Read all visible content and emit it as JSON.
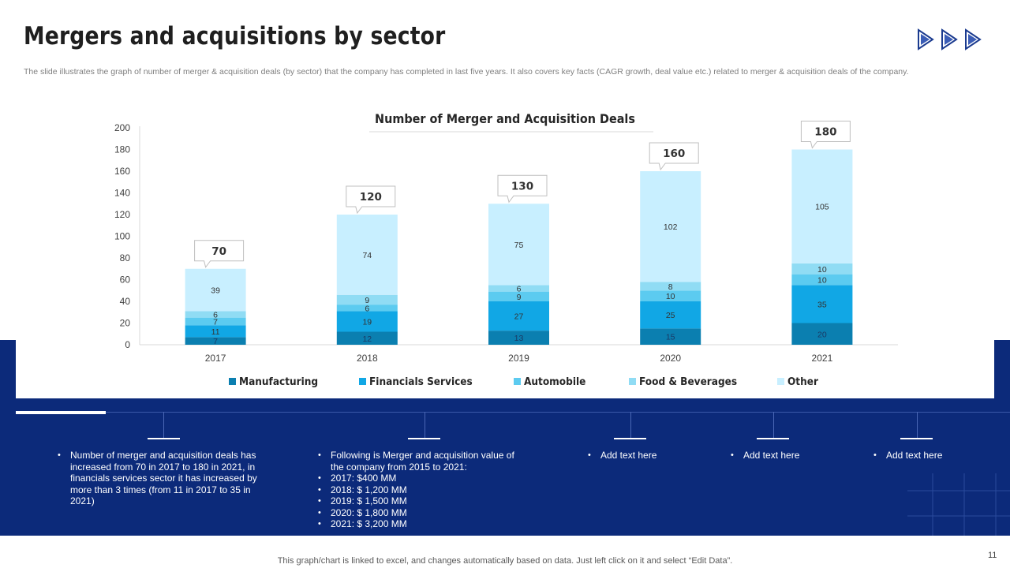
{
  "slide": {
    "title": "Mergers and acquisitions by sector",
    "subtitle": "The slide illustrates the graph of number of merger & acquisition deals (by sector) that the company has completed in last five years. It also covers key facts (CAGR growth, deal value etc.) related to merger & acquisition deals of the company.",
    "footer": "This graph/chart is linked to excel,  and changes automatically based on data. Just left click on it and select “Edit Data”.",
    "page_number": "11",
    "logo": "three-arrow-logo-icon"
  },
  "colors": {
    "band": "#0c2a7a",
    "manufacturing": "#0b7fb0",
    "financials": "#11a7e5",
    "automobile": "#5ccbf0",
    "food": "#90dcf4",
    "other": "#c8efff"
  },
  "chart_data": {
    "type": "bar",
    "stacked": true,
    "title": "Number of Merger and Acquisition Deals",
    "categories": [
      "2017",
      "2018",
      "2019",
      "2020",
      "2021"
    ],
    "series": [
      {
        "name": "Manufacturing",
        "color_key": "manufacturing",
        "values": [
          7,
          12,
          13,
          15,
          20
        ]
      },
      {
        "name": "Financials Services",
        "color_key": "financials",
        "values": [
          11,
          19,
          27,
          25,
          35
        ]
      },
      {
        "name": "Automobile",
        "color_key": "automobile",
        "values": [
          7,
          6,
          9,
          10,
          10
        ]
      },
      {
        "name": "Food & Beverages",
        "color_key": "food",
        "values": [
          6,
          9,
          6,
          8,
          10
        ]
      },
      {
        "name": "Other",
        "color_key": "other",
        "values": [
          39,
          74,
          75,
          102,
          105
        ]
      }
    ],
    "totals": [
      70,
      120,
      130,
      160,
      180
    ],
    "ylim": [
      0,
      200
    ],
    "yticks": [
      0,
      20,
      40,
      60,
      80,
      100,
      120,
      140,
      160,
      180,
      200
    ],
    "xlabel": "",
    "ylabel": "",
    "legend": "bottom"
  },
  "notes": [
    {
      "items": [
        "Number of merger and acquisition deals has increased from 70 in 2017 to 180 in 2021, in financials services sector it has increased by more than 3 times (from 11 in 2017 to 35 in 2021)"
      ],
      "sub": []
    },
    {
      "items": [
        "Following is Merger and acquisition value of the company from 2015 to 2021:"
      ],
      "sub": [
        "2017: $400 MM",
        "2018: $ 1,200 MM",
        "2019: $ 1,500 MM",
        "2020: $ 1,800 MM",
        "2021: $ 3,200 MM"
      ]
    },
    {
      "items": [
        "Add text here"
      ],
      "sub": []
    },
    {
      "items": [
        "Add text here"
      ],
      "sub": []
    },
    {
      "items": [
        "Add text here"
      ],
      "sub": []
    }
  ]
}
